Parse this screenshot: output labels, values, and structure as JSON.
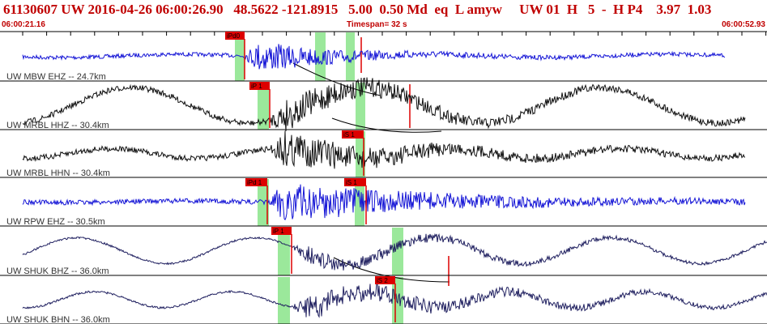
{
  "header": {
    "event_line": "61130607 UW 2016-04-26 06:00:26.90   48.5622 -121.8915   5.00  0.50 Md  eq  L amyw     UW 01  H   5  -  H P4    3.97  1.03",
    "start_time": "06:00:21.16",
    "timespan": "Timespan=  32 s",
    "end_time": "06:00:52.93"
  },
  "colors": {
    "header_text": "#c00000",
    "pick_red": "#dd0000",
    "window_green": "#9be89b",
    "trace_blue": "#1515d6",
    "trace_black": "#111111",
    "trace_navy": "#202060"
  },
  "traces": [
    {
      "label": "UW MBW EHZ -- 24.7km",
      "color": "#1515d6",
      "picks": [
        {
          "label": "iPd0"
        }
      ]
    },
    {
      "label": "UW MRBL HHZ -- 30.4km",
      "color": "#111111",
      "picks": [
        {
          "label": "iP 1"
        }
      ]
    },
    {
      "label": "UW MRBL HHN -- 30.4km",
      "color": "#111111",
      "picks": [
        {
          "label": "iS 1"
        }
      ]
    },
    {
      "label": "UW RPW EHZ -- 30.5km",
      "color": "#1515d6",
      "picks": [
        {
          "label": "iPd 1"
        },
        {
          "label": "iS 1"
        }
      ]
    },
    {
      "label": "UW SHUK BHZ -- 36.0km",
      "color": "#202060",
      "picks": [
        {
          "label": "iP 1"
        }
      ]
    },
    {
      "label": "UW SHUK BHN -- 36.0km",
      "color": "#202060",
      "picks": [
        {
          "label": "iS 2"
        }
      ]
    }
  ]
}
